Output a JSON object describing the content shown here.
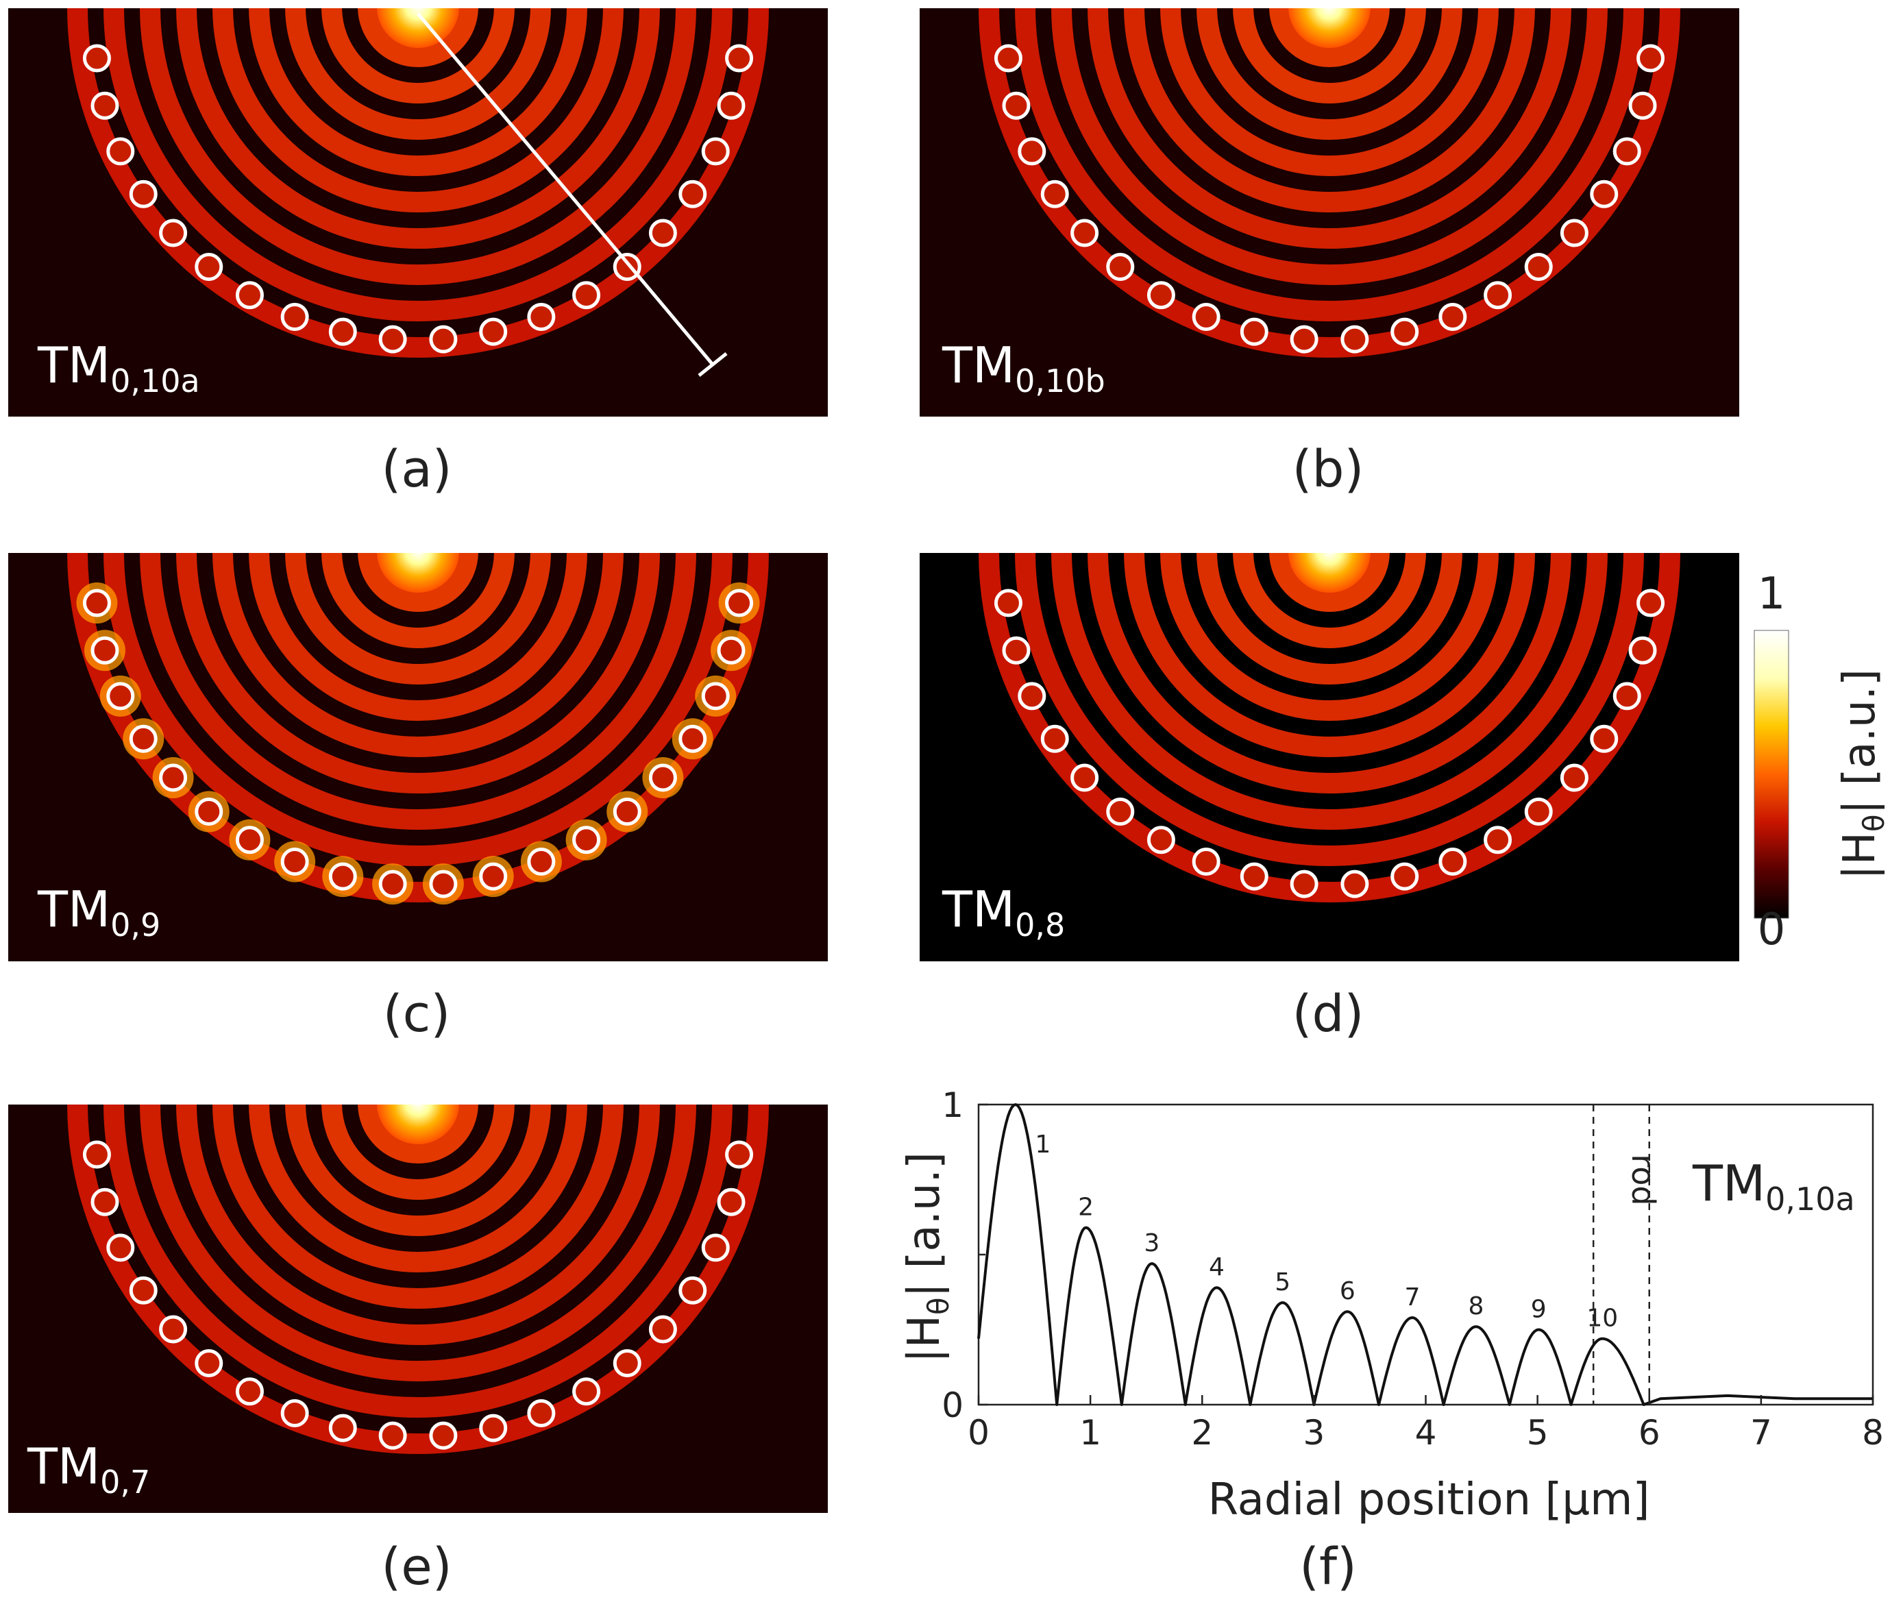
{
  "panels": [
    {
      "id": "a",
      "caption": "(a)",
      "mode_base": "TM",
      "mode_sub": "0,10a",
      "glow": false,
      "bg": "dark",
      "show_line": true
    },
    {
      "id": "b",
      "caption": "(b)",
      "mode_base": "TM",
      "mode_sub": "0,10b",
      "glow": false,
      "bg": "dark",
      "show_line": false
    },
    {
      "id": "c",
      "caption": "(c)",
      "mode_base": "TM",
      "mode_sub": "0,9",
      "glow": true,
      "bg": "dark",
      "show_line": false
    },
    {
      "id": "d",
      "caption": "(d)",
      "mode_base": "TM",
      "mode_sub": "0,8",
      "glow": false,
      "bg": "black",
      "show_line": false
    },
    {
      "id": "e",
      "caption": "(e)",
      "mode_base": "TM",
      "mode_sub": "0,7",
      "glow": false,
      "bg": "dark",
      "show_line": false
    }
  ],
  "colorbar": {
    "max_label": "1",
    "min_label": "0",
    "label_main": "|H",
    "label_sub": "θ",
    "label_tail": "|  [a.u.]",
    "colors": [
      "#000000",
      "#5a0000",
      "#c81400",
      "#ff6400",
      "#ffc800",
      "#ffffb4",
      "#ffffff"
    ]
  },
  "chart_data": {
    "type": "line",
    "caption": "(f)",
    "mode_base": "TM",
    "mode_sub": "0,10a",
    "xlabel": "Radial position  [μm]",
    "ylabel_main": "|H",
    "ylabel_sub": "θ",
    "ylabel_tail": "|  [a.u.]",
    "xlim": [
      0,
      8
    ],
    "ylim": [
      0,
      1
    ],
    "xticks": [
      "0",
      "1",
      "2",
      "3",
      "4",
      "5",
      "6",
      "7",
      "8"
    ],
    "yticks": [
      "0",
      "1"
    ],
    "rod_label": "rod",
    "rod_region": [
      5.5,
      6.0
    ],
    "peaks": [
      {
        "x": 0.33,
        "y": 1.0,
        "label": "1"
      },
      {
        "x": 0.96,
        "y": 0.59,
        "label": "2"
      },
      {
        "x": 1.55,
        "y": 0.47,
        "label": "3"
      },
      {
        "x": 2.13,
        "y": 0.39,
        "label": "4"
      },
      {
        "x": 2.72,
        "y": 0.34,
        "label": "5"
      },
      {
        "x": 3.3,
        "y": 0.31,
        "label": "6"
      },
      {
        "x": 3.88,
        "y": 0.29,
        "label": "7"
      },
      {
        "x": 4.45,
        "y": 0.26,
        "label": "8"
      },
      {
        "x": 5.01,
        "y": 0.25,
        "label": "9"
      },
      {
        "x": 5.58,
        "y": 0.22,
        "label": "10"
      }
    ],
    "zeros": [
      0.7,
      1.28,
      1.85,
      2.43,
      3.0,
      3.58,
      4.16,
      4.75,
      5.3,
      5.95
    ],
    "start_value": 0.22,
    "tail": [
      [
        5.95,
        0.0
      ],
      [
        6.1,
        0.02
      ],
      [
        6.7,
        0.03
      ],
      [
        7.3,
        0.02
      ],
      [
        8.0,
        0.02
      ]
    ]
  }
}
